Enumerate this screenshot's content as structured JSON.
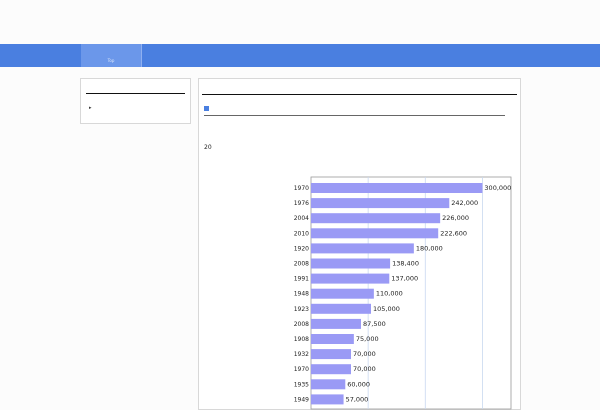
{
  "header": {
    "tagline": "",
    "top_right": "",
    "site_title": ""
  },
  "nav": {
    "items": [
      {
        "label": "",
        "sublabel": "Top"
      }
    ]
  },
  "sidebar": {
    "title": "",
    "items": [
      {
        "label": ""
      }
    ]
  },
  "content": {
    "title": "",
    "section_heading": "",
    "intro": "",
    "subheading": "20"
  },
  "colors": {
    "bar": "#9a9af5",
    "nav": "#4a7fe0",
    "grid": "#c8d8f0"
  },
  "chart_data": {
    "type": "bar",
    "orientation": "horizontal",
    "title": "",
    "xlabel": "",
    "ylabel": "",
    "xlim": [
      0,
      350000
    ],
    "grid": true,
    "categories": [
      "1970",
      "1976",
      "2004",
      "2010",
      "1920",
      "2008",
      "1991",
      "1948",
      "1923",
      "2008",
      "1908",
      "1932",
      "1970",
      "1935",
      "1949"
    ],
    "values": [
      300000,
      242000,
      226000,
      222600,
      180000,
      138400,
      137000,
      110000,
      105000,
      87500,
      75000,
      70000,
      70000,
      60000,
      57000
    ],
    "value_labels": [
      "300,000",
      "242,000",
      "226,000",
      "222,600",
      "180,000",
      "138,400",
      "137,000",
      "110,000",
      "105,000",
      "87,500",
      "75,000",
      "70,000",
      "70,000",
      "60,000",
      "57,000"
    ]
  }
}
